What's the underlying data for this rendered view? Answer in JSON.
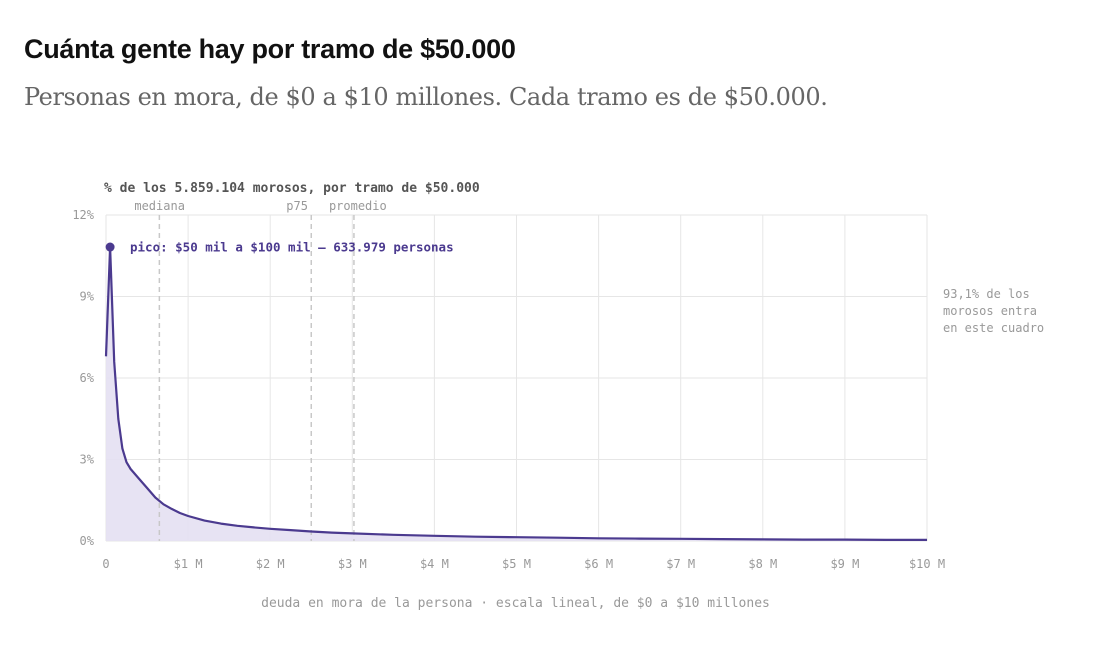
{
  "header": {
    "title": "Cuánta gente hay por tramo de $50.000",
    "subtitle": "Personas en mora, de $0 a $10 millones. Cada tramo es de $50.000."
  },
  "chart_data": {
    "type": "area",
    "ylabel": "% de los 5.859.104 morosos, por tramo de $50.000",
    "xlabel": "deuda en mora de la persona · escala lineal, de $0 a $10 millones",
    "xlim": [
      0,
      10000000
    ],
    "ylim": [
      0,
      12
    ],
    "yticks": [
      {
        "value": 0,
        "label": "0%"
      },
      {
        "value": 3,
        "label": "3%"
      },
      {
        "value": 6,
        "label": "6%"
      },
      {
        "value": 9,
        "label": "9%"
      },
      {
        "value": 12,
        "label": "12%"
      }
    ],
    "xticks": [
      {
        "value": 0,
        "label": "0"
      },
      {
        "value": 1000000,
        "label": "$1 M"
      },
      {
        "value": 2000000,
        "label": "$2 M"
      },
      {
        "value": 3000000,
        "label": "$3 M"
      },
      {
        "value": 4000000,
        "label": "$4 M"
      },
      {
        "value": 5000000,
        "label": "$5 M"
      },
      {
        "value": 6000000,
        "label": "$6 M"
      },
      {
        "value": 7000000,
        "label": "$7 M"
      },
      {
        "value": 8000000,
        "label": "$8 M"
      },
      {
        "value": 9000000,
        "label": "$9 M"
      },
      {
        "value": 10000000,
        "label": "$10 M"
      }
    ],
    "grid": true,
    "series": [
      {
        "x": [
          0,
          50000,
          100000,
          150000,
          200000,
          250000,
          300000,
          400000,
          500000,
          600000,
          700000,
          800000,
          900000,
          1000000,
          1200000,
          1400000,
          1600000,
          1800000,
          2000000,
          2250000,
          2500000,
          2750000,
          3000000,
          3500000,
          4000000,
          4500000,
          5000000,
          5500000,
          6000000,
          6500000,
          7000000,
          7500000,
          8000000,
          8500000,
          9000000,
          9500000,
          10000000
        ],
        "y": [
          6.8,
          10.82,
          6.6,
          4.5,
          3.4,
          2.9,
          2.65,
          2.3,
          1.95,
          1.6,
          1.35,
          1.18,
          1.03,
          0.92,
          0.75,
          0.64,
          0.56,
          0.5,
          0.45,
          0.4,
          0.35,
          0.31,
          0.28,
          0.23,
          0.19,
          0.16,
          0.14,
          0.12,
          0.1,
          0.09,
          0.08,
          0.07,
          0.06,
          0.05,
          0.05,
          0.04,
          0.04
        ]
      }
    ],
    "reference_lines": [
      {
        "label": "mediana",
        "x": 650000
      },
      {
        "label": "p75",
        "x": 2500000
      },
      {
        "label": "promedio",
        "x": 3020000
      }
    ],
    "peak": {
      "x": 50000,
      "y": 10.82,
      "label": "pico: $50 mil a $100 mil — 633.979 personas"
    },
    "side_note": [
      "93,1% de los",
      "morosos entra",
      "en este cuadro"
    ],
    "colors": {
      "line": "#4b3a8f",
      "fill": "#e4e0f2",
      "grid": "#e6e6e6",
      "axis_text": "#999999",
      "ref_line": "#c8c8c8"
    }
  }
}
